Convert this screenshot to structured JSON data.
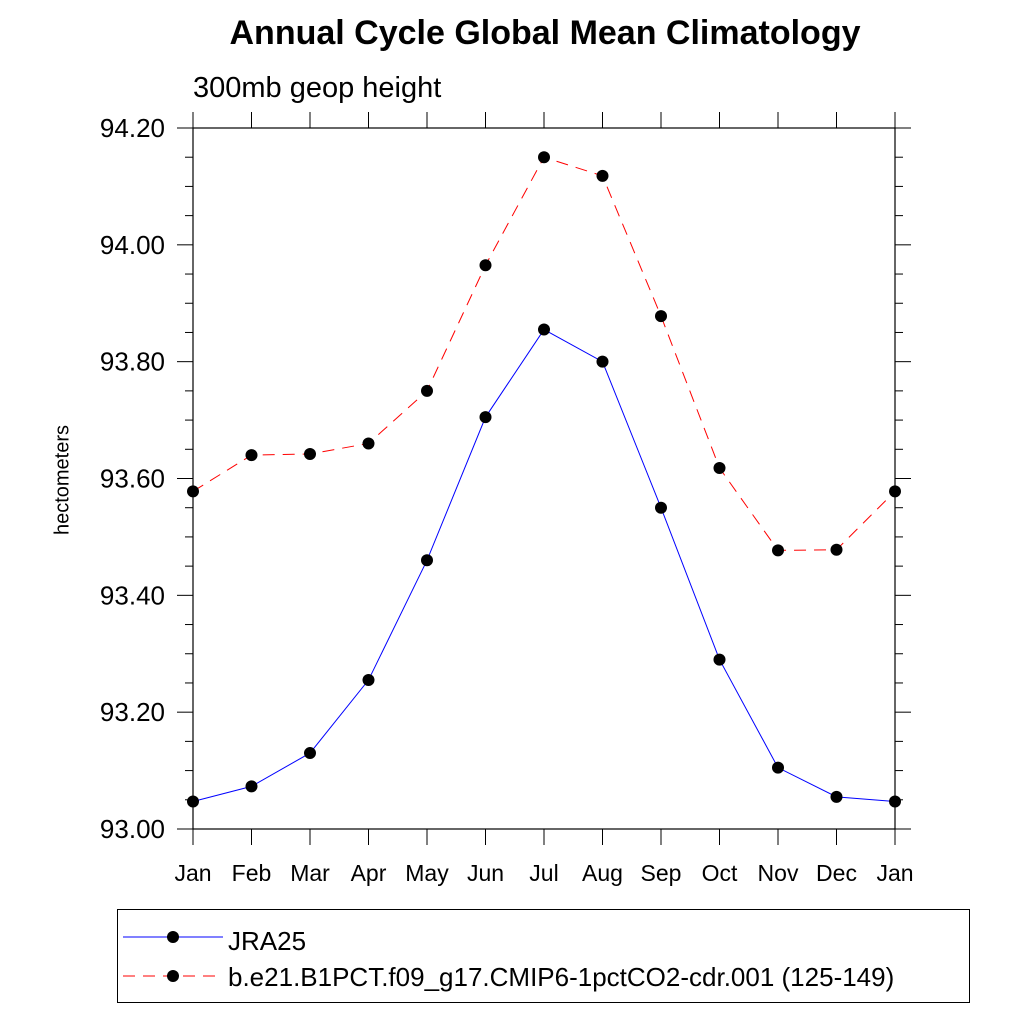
{
  "title": "Annual Cycle Global Mean Climatology",
  "subtitle": "300mb geop height",
  "chart_data": {
    "type": "line",
    "x": [
      "Jan",
      "Feb",
      "Mar",
      "Apr",
      "May",
      "Jun",
      "Jul",
      "Aug",
      "Sep",
      "Oct",
      "Nov",
      "Dec",
      "Jan"
    ],
    "ylabel": "hectometers",
    "xlabel": "",
    "ylim": [
      93.0,
      94.2
    ],
    "yticks": [
      "93.00",
      "93.20",
      "93.40",
      "93.60",
      "93.80",
      "94.00",
      "94.20"
    ],
    "grid": false,
    "legend_position": "bottom",
    "series": [
      {
        "name": "JRA25",
        "color": "#0000ff",
        "dash": "solid",
        "values": [
          93.047,
          93.073,
          93.13,
          93.255,
          93.46,
          93.705,
          93.855,
          93.8,
          93.55,
          93.29,
          93.105,
          93.055,
          93.047
        ]
      },
      {
        "name": "b.e21.B1PCT.f09_g17.CMIP6-1pctCO2-cdr.001 (125-149)",
        "color": "#ff0000",
        "dash": "dashed",
        "values": [
          93.578,
          93.64,
          93.642,
          93.66,
          93.75,
          93.965,
          94.15,
          94.118,
          93.878,
          93.618,
          93.477,
          93.478,
          93.578
        ]
      }
    ]
  }
}
